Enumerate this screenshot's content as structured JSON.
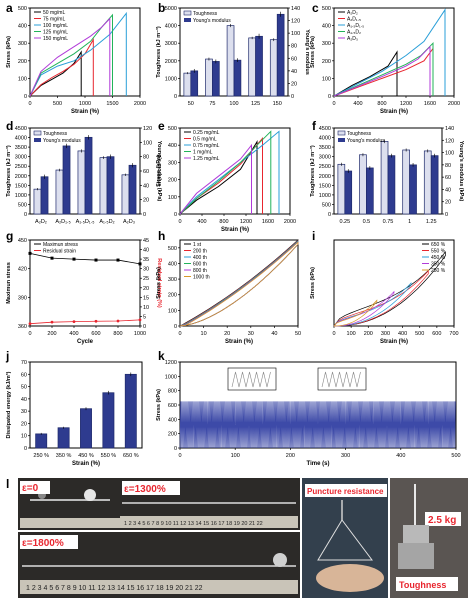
{
  "chart_data": [
    {
      "panel": "a",
      "type": "line",
      "xlabel": "Strain (%)",
      "ylabel": "Stress (kPa)",
      "xlim": [
        0,
        2000
      ],
      "ylim": [
        0,
        500
      ],
      "xticks": [
        0,
        500,
        1000,
        1500,
        2000
      ],
      "yticks": [
        0,
        100,
        200,
        300,
        400,
        500
      ],
      "legend_position": "top-left",
      "series": [
        {
          "name": "50 mg/mL",
          "color": "#000000",
          "x": [
            0,
            200,
            400,
            600,
            800,
            930,
            930
          ],
          "y": [
            0,
            60,
            95,
            130,
            185,
            250,
            0
          ]
        },
        {
          "name": "75 mg/mL",
          "color": "#e8262f",
          "x": [
            0,
            200,
            400,
            600,
            800,
            1000,
            1150,
            1150
          ],
          "y": [
            0,
            65,
            105,
            140,
            180,
            240,
            320,
            0
          ]
        },
        {
          "name": "100 mg/mL",
          "color": "#2a9fd8",
          "x": [
            0,
            200,
            500,
            800,
            1100,
            1450,
            1750,
            1750
          ],
          "y": [
            0,
            120,
            170,
            200,
            260,
            350,
            470,
            0
          ]
        },
        {
          "name": "125 mg/mL",
          "color": "#22b35a",
          "x": [
            0,
            200,
            500,
            800,
            1100,
            1300,
            1500,
            1500
          ],
          "y": [
            0,
            130,
            185,
            240,
            310,
            390,
            460,
            0
          ]
        },
        {
          "name": "150 mg/mL",
          "color": "#b13bd9",
          "x": [
            0,
            200,
            500,
            800,
            1100,
            1300,
            1450,
            1450
          ],
          "y": [
            0,
            140,
            220,
            280,
            340,
            390,
            440,
            0
          ]
        }
      ]
    },
    {
      "panel": "b",
      "type": "bar",
      "xlabel": "",
      "ylabel": "Toughness (kJ m⁻³)",
      "ylabel_right": "Young's modulus",
      "categories": [
        "50",
        "75",
        "100",
        "125",
        "150"
      ],
      "ylim": [
        0,
        5000
      ],
      "yticks": [
        0,
        1000,
        2000,
        3000,
        4000,
        5000
      ],
      "ylim_right": [
        0,
        140
      ],
      "yticks_right": [
        0,
        20,
        40,
        60,
        80,
        100,
        120,
        140
      ],
      "legend_position": "top-left",
      "series": [
        {
          "name": "Toughness",
          "axis": "left",
          "values": [
            1300,
            2100,
            4000,
            3300,
            3200
          ],
          "errors": [
            60,
            80,
            90,
            70,
            80
          ]
        },
        {
          "name": "Young's modulus",
          "axis": "right",
          "values": [
            40,
            55,
            57,
            95,
            130
          ],
          "errors": [
            3,
            3,
            3,
            4,
            4
          ]
        }
      ]
    },
    {
      "panel": "c",
      "type": "line",
      "xlabel": "Strain (%)",
      "ylabel": "Stress (kPa)",
      "xlim": [
        0,
        2000
      ],
      "ylim": [
        0,
        500
      ],
      "xticks": [
        0,
        400,
        800,
        1200,
        1600,
        2000
      ],
      "yticks": [
        0,
        100,
        200,
        300,
        400,
        500
      ],
      "legend_position": "top-left",
      "series": [
        {
          "name": "A₂D₂",
          "color": "#000000",
          "x": [
            0,
            300,
            600,
            900,
            1050,
            1050
          ],
          "y": [
            0,
            60,
            110,
            170,
            250,
            0
          ]
        },
        {
          "name": "A₂D₁.₅",
          "color": "#e8262f",
          "x": [
            0,
            400,
            800,
            1200,
            1500,
            1650,
            1650
          ],
          "y": [
            0,
            50,
            100,
            150,
            200,
            270,
            0
          ]
        },
        {
          "name": "A₁.₅D₁.₅",
          "color": "#2a9fd8",
          "x": [
            0,
            400,
            800,
            1200,
            1500,
            1850,
            1850
          ],
          "y": [
            0,
            70,
            140,
            230,
            310,
            490,
            0
          ]
        },
        {
          "name": "A₁.₅D₂",
          "color": "#22b35a",
          "x": [
            0,
            400,
            800,
            1200,
            1450,
            1650,
            1650
          ],
          "y": [
            0,
            60,
            120,
            180,
            230,
            300,
            0
          ]
        },
        {
          "name": "A₂D₃",
          "color": "#b13bd9",
          "x": [
            0,
            400,
            800,
            1200,
            1400,
            1600,
            1600
          ],
          "y": [
            0,
            55,
            110,
            170,
            210,
            280,
            0
          ]
        }
      ]
    },
    {
      "panel": "d",
      "type": "bar",
      "xlabel": "",
      "ylabel": "Toughness (kJ m⁻³)",
      "ylabel_right": "Young's modulus (kPa)",
      "categories": [
        "A₂D₂",
        "A₂D₁.₅",
        "A₁.₅D₁.₅",
        "A₁.₅D₂",
        "A₂D₃"
      ],
      "ylim": [
        0,
        4500
      ],
      "yticks": [
        0,
        500,
        1000,
        1500,
        2000,
        2500,
        3000,
        3500,
        4000,
        4500
      ],
      "ylim_right": [
        0,
        120
      ],
      "yticks_right": [
        0,
        20,
        40,
        60,
        80,
        100,
        120
      ],
      "legend_position": "top-left",
      "series": [
        {
          "name": "Toughness",
          "axis": "left",
          "values": [
            1300,
            2300,
            3300,
            2950,
            2050
          ],
          "errors": [
            60,
            70,
            80,
            70,
            60
          ]
        },
        {
          "name": "Young's modulus",
          "axis": "right",
          "values": [
            52,
            95,
            107,
            80,
            68
          ],
          "errors": [
            3,
            3,
            3,
            3,
            3
          ]
        }
      ]
    },
    {
      "panel": "e",
      "type": "line",
      "xlabel": "Strain (%)",
      "ylabel": "Stress (kPa)",
      "xlim": [
        0,
        2000
      ],
      "ylim": [
        0,
        500
      ],
      "xticks": [
        0,
        400,
        800,
        1200,
        1600,
        2000
      ],
      "yticks": [
        0,
        100,
        200,
        300,
        400,
        500
      ],
      "legend_position": "top-left",
      "series": [
        {
          "name": "0.25 mg/mL",
          "color": "#000000",
          "x": [
            0,
            300,
            700,
            1100,
            1400,
            1400
          ],
          "y": [
            0,
            80,
            160,
            260,
            420,
            0
          ]
        },
        {
          "name": "0.5 mg/mL",
          "color": "#e8262f",
          "x": [
            0,
            300,
            700,
            1100,
            1500,
            1500
          ],
          "y": [
            0,
            90,
            180,
            290,
            440,
            0
          ]
        },
        {
          "name": "0.75 mg/mL",
          "color": "#2a9fd8",
          "x": [
            0,
            300,
            700,
            1100,
            1500,
            1800,
            1800
          ],
          "y": [
            0,
            100,
            200,
            300,
            400,
            480,
            0
          ]
        },
        {
          "name": "1 mg/mL",
          "color": "#22b35a",
          "x": [
            0,
            300,
            700,
            1100,
            1400,
            1650,
            1650
          ],
          "y": [
            0,
            90,
            190,
            300,
            400,
            480,
            0
          ]
        },
        {
          "name": "1.25 mg/mL",
          "color": "#b13bd9",
          "x": [
            0,
            300,
            700,
            1100,
            1300,
            1300
          ],
          "y": [
            0,
            120,
            220,
            320,
            400,
            0
          ]
        }
      ]
    },
    {
      "panel": "f",
      "type": "bar",
      "xlabel": "",
      "ylabel": "Toughness (kJ m⁻³)",
      "ylabel_right": "Young's modulus (kPa)",
      "categories": [
        "0.25",
        "0.5",
        "0.75",
        "1",
        "1.25"
      ],
      "ylim": [
        0,
        4500
      ],
      "yticks": [
        0,
        500,
        1000,
        1500,
        2000,
        2500,
        3000,
        3500,
        4000,
        4500
      ],
      "ylim_right": [
        0,
        140
      ],
      "yticks_right": [
        0,
        20,
        40,
        60,
        80,
        100,
        120,
        140
      ],
      "legend_position": "top-left",
      "series": [
        {
          "name": "Toughness",
          "axis": "left",
          "values": [
            2600,
            3100,
            3800,
            3350,
            3300
          ],
          "errors": [
            80,
            80,
            90,
            80,
            80
          ]
        },
        {
          "name": "Young's modulus",
          "axis": "right",
          "values": [
            70,
            75,
            95,
            80,
            95
          ],
          "errors": [
            3,
            3,
            3,
            3,
            3
          ]
        }
      ]
    },
    {
      "panel": "g",
      "type": "line",
      "xlabel": "Cycle",
      "ylabel": "Maximun stress",
      "ylabel_right": "Residual strain (%)",
      "xlim": [
        0,
        1000
      ],
      "xticks": [
        0,
        200,
        400,
        600,
        800,
        1000
      ],
      "ylim": [
        360,
        450
      ],
      "yticks": [
        360,
        390,
        420,
        450
      ],
      "ylim_right": [
        0,
        45
      ],
      "yticks_right": [
        0,
        5,
        10,
        15,
        20,
        25,
        30,
        35,
        40,
        45
      ],
      "legend_position": "top-left",
      "series": [
        {
          "name": "Maximun stress",
          "axis": "left",
          "color": "#000000",
          "x": [
            0,
            200,
            400,
            600,
            800,
            1000
          ],
          "y": [
            436,
            431,
            430,
            429,
            429,
            425
          ]
        },
        {
          "name": "Residual strain",
          "axis": "right",
          "color": "#e8262f",
          "x": [
            0,
            200,
            400,
            600,
            800,
            1000
          ],
          "y": [
            1.2,
            2.0,
            2.3,
            2.5,
            2.6,
            3.2
          ]
        }
      ]
    },
    {
      "panel": "h",
      "type": "line",
      "xlabel": "Strain (%)",
      "ylabel": "Stress (kPa)",
      "xlim": [
        0,
        50
      ],
      "xticks": [
        0,
        10,
        20,
        30,
        40,
        50
      ],
      "ylim": [
        0,
        550
      ],
      "yticks": [
        0,
        100,
        200,
        300,
        400,
        500
      ],
      "legend_position": "top-left",
      "series": [
        {
          "name": "1 st",
          "color": "#000000"
        },
        {
          "name": "200 th",
          "color": "#e8262f"
        },
        {
          "name": "400 th",
          "color": "#2a9fd8"
        },
        {
          "name": "600 th",
          "color": "#22b35a"
        },
        {
          "name": "800 th",
          "color": "#b13bd9"
        },
        {
          "name": "1000 th",
          "color": "#d89a2a"
        }
      ]
    },
    {
      "panel": "i",
      "type": "line",
      "xlabel": "Strain (%)",
      "ylabel": "Stress (kPa)",
      "xlim": [
        0,
        700
      ],
      "xticks": [
        0,
        100,
        200,
        300,
        400,
        500,
        600,
        700
      ],
      "ylim": [
        0,
        250
      ],
      "legend_position": "top-right",
      "series": [
        {
          "name": "650 %",
          "color": "#000000",
          "max_strain": 650,
          "max_stress": 215
        },
        {
          "name": "550 %",
          "color": "#e8262f",
          "max_strain": 550,
          "max_stress": 160
        },
        {
          "name": "450 %",
          "color": "#2a9fd8",
          "max_strain": 450,
          "max_stress": 125
        },
        {
          "name": "350 %",
          "color": "#b13bd9",
          "max_strain": 350,
          "max_stress": 100
        },
        {
          "name": "250 %",
          "color": "#d89a2a",
          "max_strain": 250,
          "max_stress": 75
        }
      ]
    },
    {
      "panel": "j",
      "type": "bar",
      "xlabel": "Strain (%)",
      "ylabel": "Dissipated energy (kJ/m³)",
      "categories": [
        "250 %",
        "350 %",
        "450 %",
        "550 %",
        "650 %"
      ],
      "ylim": [
        0,
        70
      ],
      "yticks": [
        0,
        10,
        20,
        30,
        40,
        50,
        60,
        70
      ],
      "values": [
        11.5,
        16.5,
        32,
        45,
        60
      ],
      "errors": [
        0.8,
        0.8,
        1.2,
        1.5,
        1.5
      ]
    },
    {
      "panel": "k",
      "type": "line",
      "xlabel": "Time (s)",
      "ylabel": "Stress (kPa)",
      "xlim": [
        0,
        500
      ],
      "xticks": [
        0,
        100,
        200,
        300,
        400,
        500
      ],
      "ylim": [
        0,
        1200
      ],
      "yticks": [
        0,
        200,
        400,
        600,
        800,
        1000,
        1200
      ],
      "series": [
        {
          "name": "",
          "color": "#3d4aa8",
          "peak": 650,
          "cycles": 250
        }
      ]
    }
  ],
  "photo": {
    "panel": "l",
    "labels": [
      "ε=0",
      "ε=1300%",
      "ε=1800%",
      "Puncture resistance",
      "Toughness",
      "2.5 kg"
    ],
    "ruler": "1 2 3 4 5 6 7 8 9 10 11 12 13 14 15 16 17 18 19 20 21 22"
  }
}
